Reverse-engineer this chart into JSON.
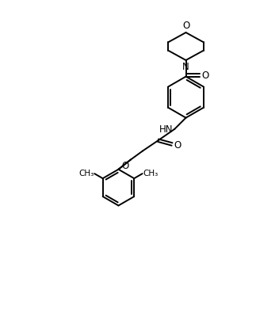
{
  "bg_color": "#ffffff",
  "line_color": "#000000",
  "lw": 1.4,
  "fs": 8.5,
  "figsize": [
    3.23,
    3.9
  ],
  "dpi": 100,
  "xlim": [
    0,
    10
  ],
  "ylim": [
    0,
    12
  ]
}
